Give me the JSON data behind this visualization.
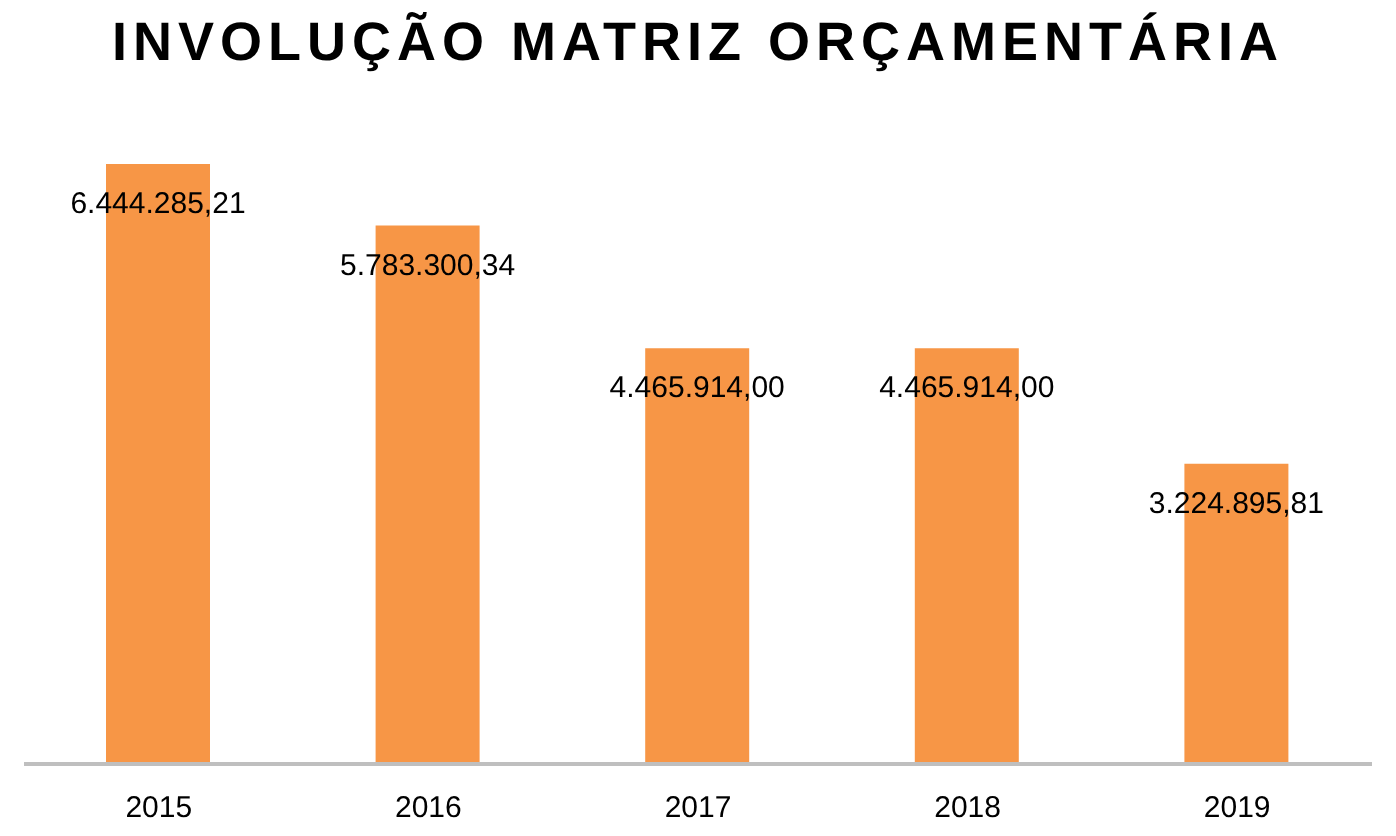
{
  "chart_data": {
    "type": "bar",
    "title": "INVOLUÇÃO MATRIZ ORÇAMENTÁRIA",
    "categories": [
      "2015",
      "2016",
      "2017",
      "2018",
      "2019"
    ],
    "values": [
      6444285.21,
      5783300.34,
      4465914.0,
      4465914.0,
      3224895.81
    ],
    "value_labels": [
      "6.444.285,21",
      "5.783.300,34",
      "4.465.914,00",
      "4.465.914,00",
      "3.224.895,81"
    ],
    "color": "#f79646",
    "grid": false,
    "legend": false
  }
}
